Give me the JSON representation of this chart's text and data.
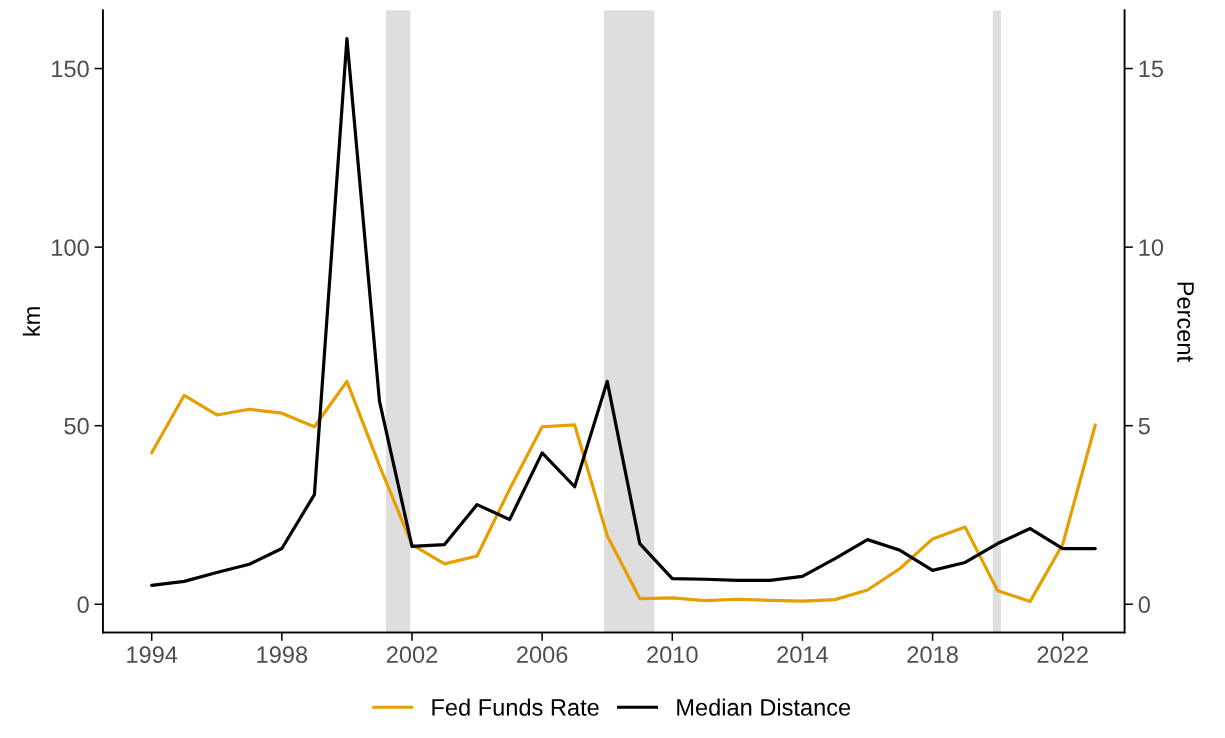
{
  "chart_data": {
    "type": "line",
    "ylabel": "km",
    "y2label": "Percent",
    "x": [
      1994,
      1995,
      1996,
      1997,
      1998,
      1999,
      2000,
      2001,
      2002,
      2003,
      2004,
      2005,
      2006,
      2007,
      2008,
      2009,
      2010,
      2011,
      2012,
      2013,
      2014,
      2015,
      2016,
      2017,
      2018,
      2019,
      2020,
      2021,
      2022,
      2023
    ],
    "series": [
      {
        "name": "Fed Funds Rate",
        "color": "#e69f00",
        "axis": "y2",
        "values": [
          4.24,
          5.85,
          5.3,
          5.46,
          5.35,
          4.97,
          6.24,
          3.88,
          1.67,
          1.13,
          1.35,
          3.22,
          4.97,
          5.02,
          1.92,
          0.16,
          0.18,
          0.1,
          0.14,
          0.11,
          0.09,
          0.13,
          0.4,
          1.0,
          1.83,
          2.16,
          0.38,
          0.08,
          1.68,
          5.02
        ]
      },
      {
        "name": "Median Distance",
        "color": "#000000",
        "values": [
          5.3,
          6.4,
          8.9,
          11.2,
          15.6,
          30.7,
          158.4,
          56.9,
          16.2,
          16.7,
          27.9,
          23.7,
          42.4,
          32.9,
          62.4,
          17.0,
          7.2,
          7.0,
          6.7,
          6.7,
          7.8,
          12.8,
          18.1,
          15.1,
          9.5,
          11.7,
          17.0,
          21.2,
          15.6,
          15.6
        ]
      }
    ],
    "xlim": [
      1992.5,
      2023.9
    ],
    "xticks": [
      1994,
      1998,
      2002,
      2006,
      2010,
      2014,
      2018,
      2022
    ],
    "ylim": [
      -7.9,
      166.3
    ],
    "yticks": [
      0,
      50,
      100,
      150
    ],
    "y2lim": [
      -0.79,
      16.63
    ],
    "y2ticks": [
      0,
      5,
      10,
      15
    ],
    "bands": [
      {
        "axis": "x",
        "from": 2001.2,
        "to": 2001.95,
        "color": "#dedede"
      },
      {
        "axis": "x",
        "from": 2007.9,
        "to": 2009.45,
        "color": "#dedede"
      },
      {
        "axis": "x",
        "from": 2019.85,
        "to": 2020.1,
        "color": "#dedede"
      }
    ],
    "grid": false,
    "legend": "bottom",
    "line_style": "solid"
  }
}
